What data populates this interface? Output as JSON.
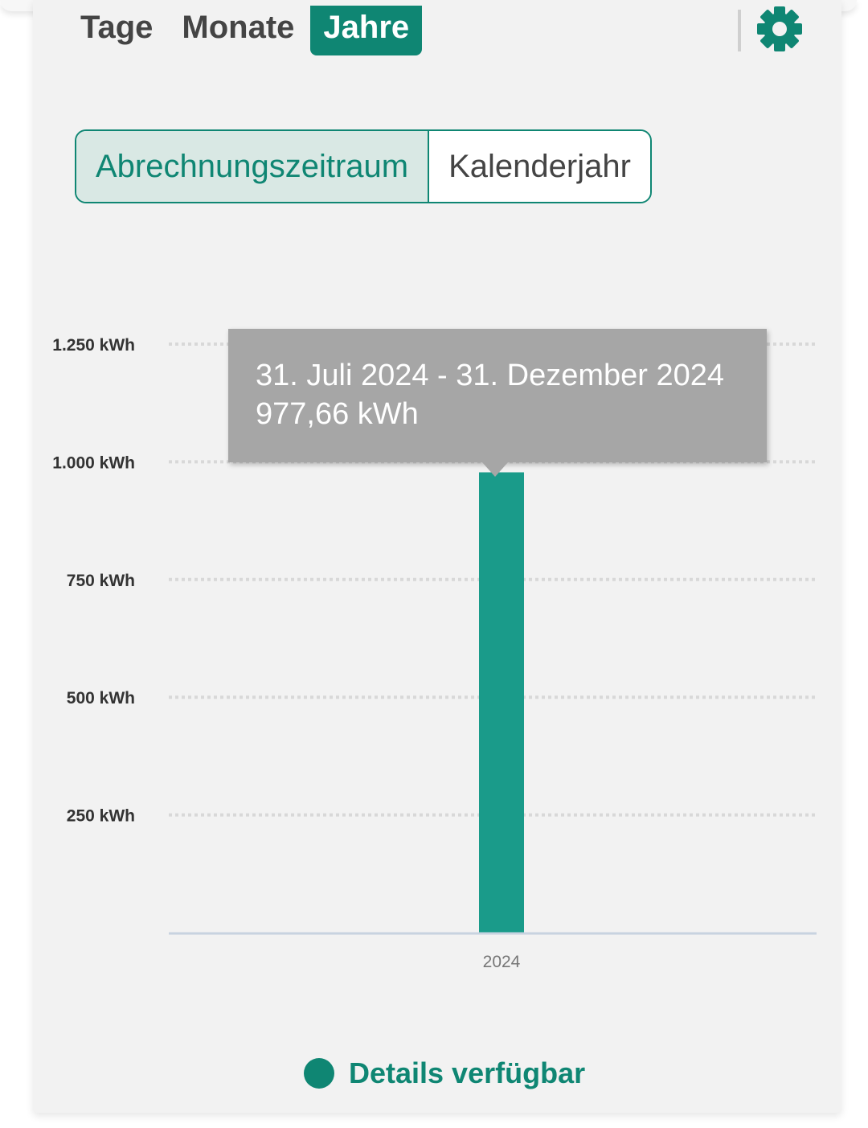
{
  "period_tabs": [
    {
      "label": "Tage",
      "active": false
    },
    {
      "label": "Monate",
      "active": false
    },
    {
      "label": "Jahre",
      "active": true
    }
  ],
  "settings_icon": "gear-icon",
  "range_toggle": {
    "options": [
      {
        "label": "Abrechnungszeitraum",
        "active": true
      },
      {
        "label": "Kalenderjahr",
        "active": false
      }
    ]
  },
  "tooltip": {
    "period": "31. Juli 2024 - 31. Dezember 2024",
    "value": "977,66 kWh"
  },
  "legend": {
    "label": "Details verfügbar",
    "color": "#0f8673"
  },
  "colors": {
    "accent": "#0f8673",
    "bar": "#1a9b8a",
    "tooltip_bg": "#a6a6a6"
  },
  "chart_data": {
    "type": "bar",
    "categories": [
      "2024"
    ],
    "values": [
      977.66
    ],
    "ylim": [
      0,
      1250
    ],
    "yticks": [
      {
        "value": 250,
        "label": "250 kWh"
      },
      {
        "value": 500,
        "label": "500 kWh"
      },
      {
        "value": 750,
        "label": "750 kWh"
      },
      {
        "value": 1000,
        "label": "1.000 kWh"
      },
      {
        "value": 1250,
        "label": "1.250 kWh"
      }
    ],
    "grid": true,
    "legend_position": "bottom"
  }
}
